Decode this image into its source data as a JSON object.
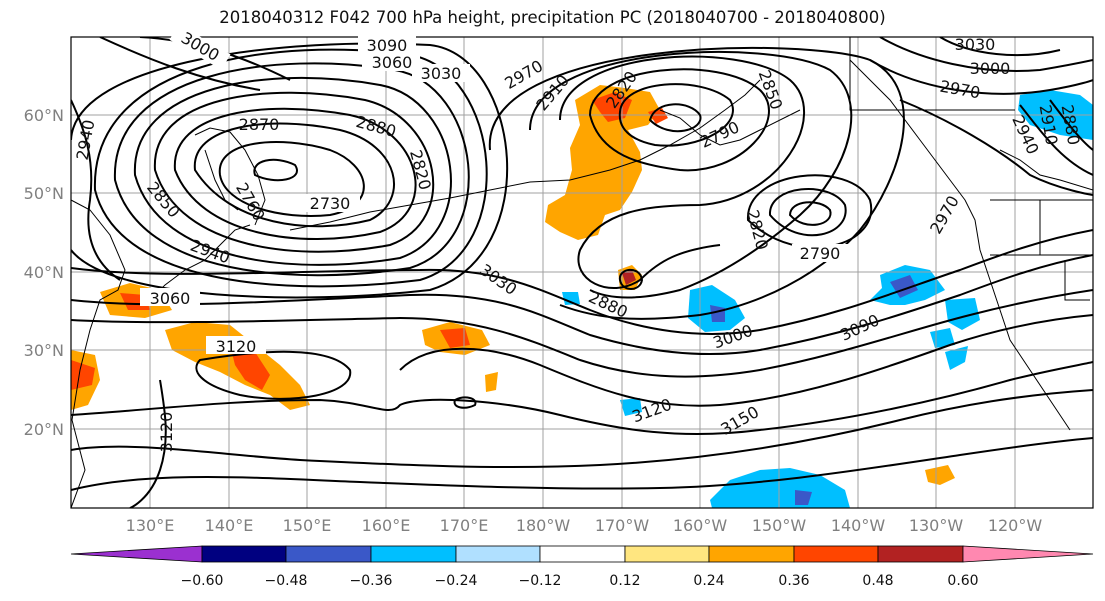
{
  "title": "2018040312 F042 700 hPa height, precipitation PC (2018040700 - 2018040800)",
  "lat_labels": [
    "60°N",
    "50°N",
    "40°N",
    "30°N",
    "20°N"
  ],
  "lon_labels": [
    "130°E",
    "140°E",
    "150°E",
    "160°E",
    "170°E",
    "180°W",
    "170°W",
    "160°W",
    "150°W",
    "140°W",
    "130°W",
    "120°W"
  ],
  "contour_labels": [
    "3090",
    "3060",
    "3030",
    "3000",
    "2970",
    "2910",
    "2880",
    "2870",
    "2850",
    "2820",
    "2790",
    "2760",
    "2730",
    "2940",
    "3030",
    "3000",
    "3060",
    "3120",
    "3120",
    "3120",
    "3150",
    "3090",
    "3000",
    "2880",
    "3030",
    "2820",
    "2790",
    "2850",
    "2970",
    "2940",
    "2910",
    "3030",
    "3000",
    "2970",
    "2880",
    "2790",
    "2820"
  ],
  "colorbar": {
    "ticks": [
      "−0.60",
      "−0.48",
      "−0.36",
      "−0.24",
      "−0.12",
      "0.12",
      "0.24",
      "0.36",
      "0.48",
      "0.60"
    ],
    "colors": [
      "#9b30d0",
      "#000080",
      "#3a58c8",
      "#00bfff",
      "#b0e0ff",
      "#ffffff",
      "#ffe680",
      "#ffa500",
      "#ff4500",
      "#b22222",
      "#ff88b0"
    ]
  }
}
